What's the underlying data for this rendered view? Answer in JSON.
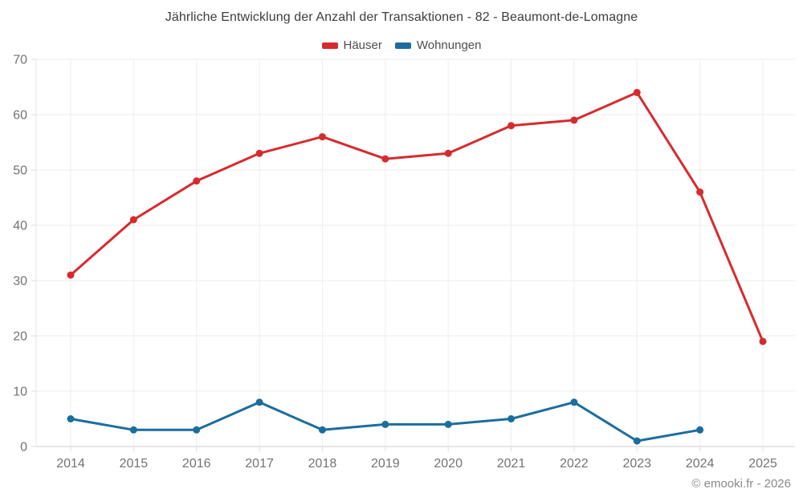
{
  "chart_data": {
    "type": "line",
    "title": "Jährliche Entwicklung der Anzahl der Transaktionen - 82 - Beaumont-de-Lomagne",
    "categories": [
      "2014",
      "2015",
      "2016",
      "2017",
      "2018",
      "2019",
      "2020",
      "2021",
      "2022",
      "2023",
      "2024",
      "2025"
    ],
    "series": [
      {
        "name": "Häuser",
        "color": "#d62b2e",
        "values": [
          31,
          41,
          48,
          53,
          56,
          52,
          53,
          58,
          59,
          64,
          46,
          19
        ]
      },
      {
        "name": "Wohnungen",
        "color": "#1b6d9e",
        "values": [
          5,
          3,
          3,
          8,
          3,
          4,
          4,
          5,
          8,
          1,
          3,
          null
        ]
      }
    ],
    "xlabel": "",
    "ylabel": "",
    "ylim": [
      0,
      70
    ],
    "ytick_step": 10,
    "grid": true,
    "legend_position": "top"
  },
  "footer": {
    "text": "© emooki.fr - 2026"
  }
}
